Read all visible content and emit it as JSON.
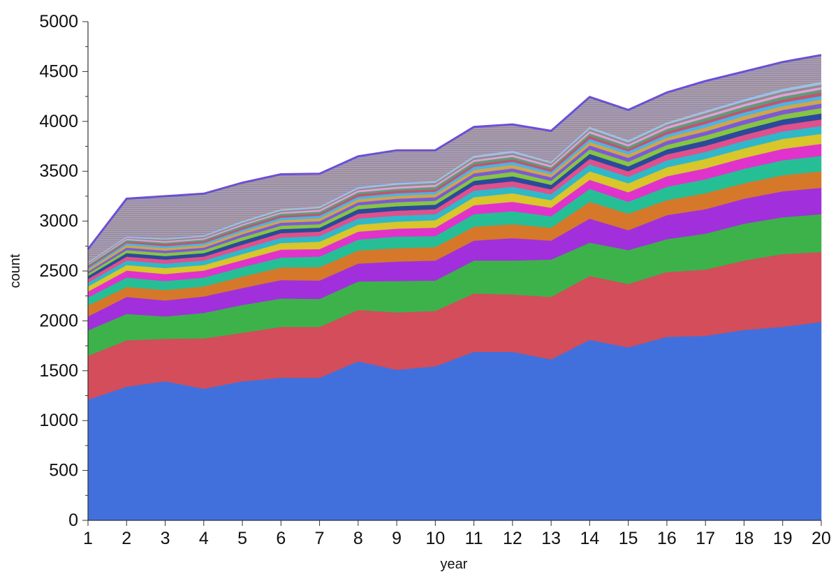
{
  "chart_data": {
    "type": "area",
    "stacked": true,
    "title": "",
    "xlabel": "year",
    "ylabel": "count",
    "x": [
      1,
      2,
      3,
      4,
      5,
      6,
      7,
      8,
      9,
      10,
      11,
      12,
      13,
      14,
      15,
      16,
      17,
      18,
      19,
      20
    ],
    "xlim": [
      1,
      20
    ],
    "ylim": [
      0,
      5000
    ],
    "y_ticks": [
      0,
      500,
      1000,
      1500,
      2000,
      2500,
      3000,
      3500,
      4000,
      4500,
      5000
    ],
    "grid": false,
    "legend": "none",
    "series": [
      {
        "color": "#4170dd",
        "values": [
          1210,
          1340,
          1395,
          1320,
          1395,
          1430,
          1430,
          1595,
          1510,
          1545,
          1690,
          1690,
          1615,
          1810,
          1735,
          1840,
          1850,
          1910,
          1940,
          1990
        ]
      },
      {
        "color": "#d34d5a",
        "values": [
          440,
          465,
          425,
          505,
          485,
          510,
          510,
          515,
          575,
          555,
          585,
          575,
          625,
          640,
          635,
          650,
          665,
          695,
          730,
          700
        ]
      },
      {
        "color": "#3db24a",
        "values": [
          255,
          265,
          225,
          255,
          280,
          285,
          280,
          285,
          315,
          305,
          330,
          340,
          375,
          335,
          340,
          330,
          360,
          370,
          370,
          380
        ]
      },
      {
        "color": "#a22fdc",
        "values": [
          140,
          170,
          160,
          165,
          170,
          185,
          185,
          180,
          195,
          200,
          200,
          225,
          190,
          240,
          200,
          240,
          245,
          250,
          260,
          265
        ]
      },
      {
        "color": "#d5782a",
        "values": [
          110,
          100,
          105,
          100,
          115,
          125,
          135,
          130,
          135,
          135,
          140,
          140,
          130,
          170,
          165,
          150,
          160,
          155,
          160,
          165
        ]
      },
      {
        "color": "#26bf95",
        "values": [
          80,
          95,
          90,
          90,
          95,
          100,
          105,
          110,
          115,
          110,
          125,
          130,
          115,
          130,
          120,
          135,
          140,
          145,
          150,
          155
        ]
      },
      {
        "color": "#e033cc",
        "values": [
          60,
          70,
          70,
          70,
          70,
          80,
          75,
          80,
          80,
          85,
          90,
          95,
          85,
          90,
          95,
          105,
          110,
          110,
          115,
          120
        ]
      },
      {
        "color": "#d8c62a",
        "values": [
          50,
          55,
          60,
          55,
          60,
          65,
          75,
          70,
          70,
          75,
          80,
          85,
          75,
          85,
          90,
          90,
          95,
          95,
          100,
          100
        ]
      },
      {
        "color": "#30b8c8",
        "values": [
          40,
          45,
          45,
          45,
          50,
          55,
          55,
          60,
          60,
          60,
          65,
          65,
          60,
          70,
          65,
          70,
          70,
          75,
          75,
          80
        ]
      },
      {
        "color": "#e0508c",
        "values": [
          35,
          40,
          40,
          40,
          45,
          45,
          45,
          50,
          50,
          50,
          55,
          55,
          50,
          55,
          55,
          60,
          60,
          60,
          65,
          65
        ]
      },
      {
        "color": "#2b4a9a",
        "values": [
          30,
          35,
          35,
          35,
          40,
          40,
          40,
          45,
          45,
          45,
          45,
          50,
          45,
          50,
          50,
          50,
          55,
          55,
          55,
          60
        ]
      },
      {
        "color": "#86c542",
        "values": [
          25,
          30,
          30,
          30,
          35,
          35,
          35,
          40,
          40,
          40,
          40,
          45,
          40,
          45,
          45,
          45,
          50,
          50,
          50,
          55
        ]
      },
      {
        "color": "#7c5ad6",
        "values": [
          20,
          25,
          25,
          25,
          30,
          30,
          30,
          30,
          35,
          35,
          35,
          35,
          35,
          40,
          40,
          40,
          40,
          45,
          45,
          45
        ]
      },
      {
        "color": "#cfa64a",
        "values": [
          20,
          25,
          25,
          25,
          25,
          25,
          30,
          30,
          30,
          30,
          35,
          35,
          30,
          35,
          35,
          35,
          40,
          40,
          40,
          40
        ]
      },
      {
        "color": "#4db3e6",
        "values": [
          15,
          20,
          20,
          20,
          20,
          25,
          25,
          25,
          25,
          25,
          30,
          30,
          25,
          30,
          30,
          30,
          35,
          35,
          35,
          35
        ]
      },
      {
        "color": "#c05570",
        "values": [
          15,
          15,
          20,
          20,
          20,
          20,
          20,
          25,
          25,
          25,
          25,
          25,
          25,
          30,
          25,
          30,
          30,
          30,
          30,
          35
        ]
      },
      {
        "color": "#5d9d78",
        "values": [
          15,
          15,
          15,
          15,
          20,
          20,
          20,
          20,
          20,
          25,
          25,
          25,
          20,
          25,
          25,
          25,
          30,
          30,
          30,
          30
        ]
      },
      {
        "color": "#e3a0d8",
        "values": [
          10,
          15,
          15,
          15,
          15,
          15,
          20,
          20,
          20,
          20,
          20,
          20,
          20,
          25,
          20,
          25,
          25,
          25,
          25,
          25
        ]
      },
      {
        "color": "#8e8e8e",
        "values": [
          10,
          10,
          15,
          15,
          15,
          15,
          15,
          15,
          20,
          20,
          20,
          20,
          20,
          20,
          20,
          20,
          25,
          25,
          25,
          25
        ]
      },
      {
        "color": "#9fc0e6",
        "values": [
          10,
          10,
          10,
          10,
          15,
          15,
          15,
          15,
          15,
          15,
          20,
          20,
          15,
          20,
          20,
          20,
          20,
          20,
          25,
          25
        ]
      },
      {
        "color": "#a87a3c",
        "values": [
          130,
          380,
          425,
          420,
          385,
          350,
          330,
          310,
          330,
          310,
          290,
          265,
          310,
          300,
          305,
          300,
          300,
          280,
          270,
          270
        ]
      }
    ],
    "top_outline_color": "#6a4fd6"
  }
}
